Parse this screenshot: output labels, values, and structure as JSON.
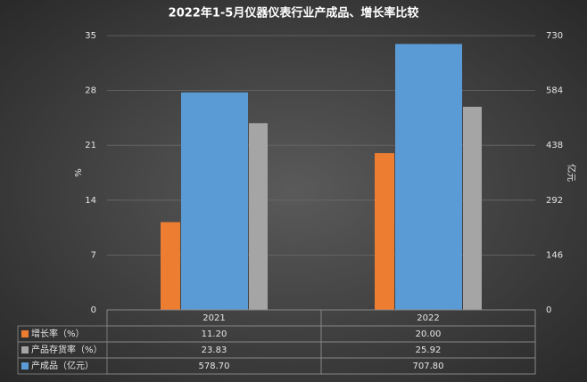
{
  "chart_data": {
    "type": "bar",
    "title": "2022年1-5月仪器仪表行业产成品、增长率比较",
    "categories": [
      "2021",
      "2022"
    ],
    "series": [
      {
        "name": "增长率（%）",
        "color": "#ed7d31",
        "values": [
          11.2,
          20.0
        ],
        "value_labels": [
          "11.20",
          "20.00"
        ]
      },
      {
        "name": "产品存货率（%）",
        "color": "#a5a5a5",
        "values": [
          23.83,
          25.92
        ],
        "value_labels": [
          "23.83",
          "25.92"
        ]
      },
      {
        "name": "产成品（亿元）",
        "color": "#5b9bd5",
        "axis": "y2",
        "values": [
          578.7,
          707.8
        ],
        "value_labels": [
          "578.70",
          "707.80"
        ]
      }
    ],
    "ylabel": "%",
    "y2label": "亿元",
    "ylim": [
      0,
      35
    ],
    "yticks": [
      0,
      7,
      14,
      21,
      28,
      35
    ],
    "y2lim": [
      0,
      730
    ],
    "y2ticks": [
      0,
      146,
      292,
      438,
      584,
      730
    ],
    "grid": true
  }
}
